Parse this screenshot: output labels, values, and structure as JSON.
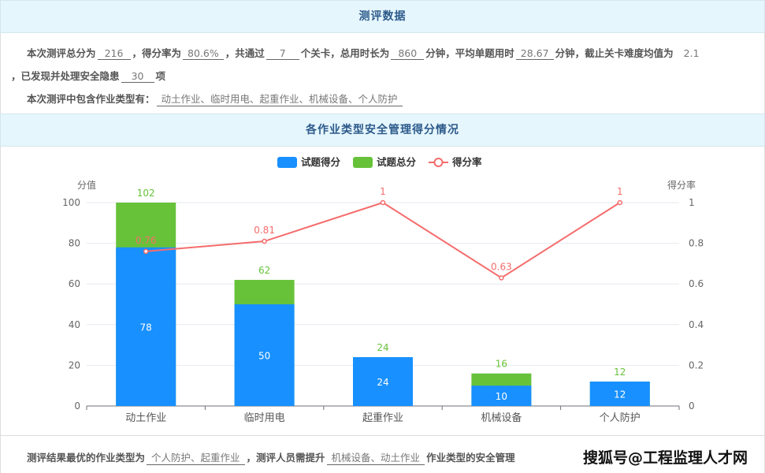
{
  "section1": {
    "title": "测评数据"
  },
  "summary": {
    "p1": "本次测评总分为",
    "total": "216",
    "p2": "，得分率为",
    "rate": "80.6%",
    "p3": "，共通过",
    "levels": "7",
    "p4": "个关卡，总用时长为",
    "duration": "860",
    "p5": "分钟，平均单题用时",
    "avg": "28.67",
    "p6": "分钟，截止关卡难度均值为",
    "difficulty": "2.1",
    "p7": "，已发现并处理安全隐患",
    "hazards": "30",
    "p8": "项",
    "types_label": "本次测评中包含作业类型有：",
    "types": "动土作业、临时用电、起重作业、机械设备、个人防护"
  },
  "section2": {
    "title": "各作业类型安全管理得分情况"
  },
  "footer": {
    "p1": "测评结果最优的作业类型为",
    "best": "个人防护、起重作业",
    "p2": "，测评人员需提升",
    "improve": "机械设备、动土作业",
    "p3": "作业类型的安全管理"
  },
  "watermark": "搜狐号@工程监理人才网",
  "chart_data": {
    "type": "bar",
    "categories": [
      "动土作业",
      "临时用电",
      "起重作业",
      "机械设备",
      "个人防护"
    ],
    "series": [
      {
        "name": "试题得分",
        "type": "bar",
        "color": "#1890ff",
        "values": [
          78,
          50,
          24,
          10,
          12
        ]
      },
      {
        "name": "试题总分",
        "type": "bar",
        "color": "#67c23a",
        "values": [
          102,
          62,
          24,
          16,
          12
        ]
      },
      {
        "name": "得分率",
        "type": "line",
        "color": "#f56c6c",
        "axis": "right",
        "values": [
          0.76,
          0.81,
          1,
          0.63,
          1
        ]
      }
    ],
    "ylabel": "分值",
    "ylabel_right": "得分率",
    "ylim": [
      0,
      100
    ],
    "yticks": [
      0,
      20,
      40,
      60,
      80,
      100
    ],
    "ylim_right": [
      0,
      1
    ],
    "yticks_right": [
      0,
      0.2,
      0.4,
      0.6,
      0.8,
      1
    ],
    "grid": true,
    "legend": "top-center"
  }
}
